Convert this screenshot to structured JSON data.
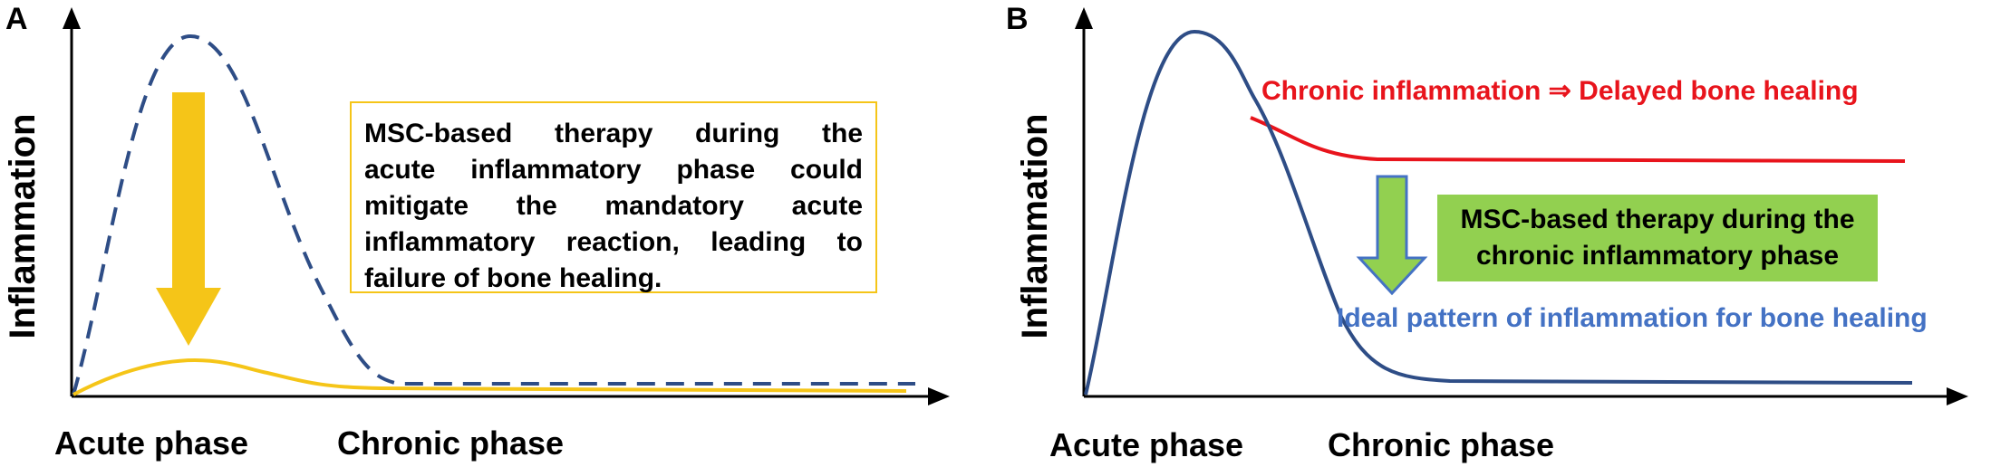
{
  "panel_a": {
    "letter": "A",
    "y_axis_label": "Inflammation",
    "x_labels": [
      "Acute phase",
      "Chronic phase"
    ],
    "note_lines": [
      "MSC-based therapy during the",
      "acute inflammatory phase could",
      "mitigate the mandatory acute",
      "inflammatory reaction, leading to",
      "failure of bone healing."
    ],
    "curves": {
      "untreated": {
        "style": "dashed",
        "color": "#2e4d86"
      },
      "treated": {
        "style": "solid",
        "color": "#f5c518"
      }
    },
    "arrow": {
      "color": "#f5c518",
      "direction": "down"
    }
  },
  "panel_b": {
    "letter": "B",
    "y_axis_label": "Inflammation",
    "x_labels": [
      "Acute phase",
      "Chronic phase"
    ],
    "red_label": "Chronic inflammation ⇒ Delayed bone healing",
    "blue_label": "Ideal pattern of inflammation for bone healing",
    "note_lines": [
      "MSC-based therapy during the",
      "chronic inflammatory phase"
    ],
    "colors": {
      "ideal_curve": "#2e4d86",
      "chronic_curve": "#e8141c",
      "note_bg": "#92d050",
      "arrow": "#92d050",
      "arrow_outline": "#4472c4"
    }
  }
}
